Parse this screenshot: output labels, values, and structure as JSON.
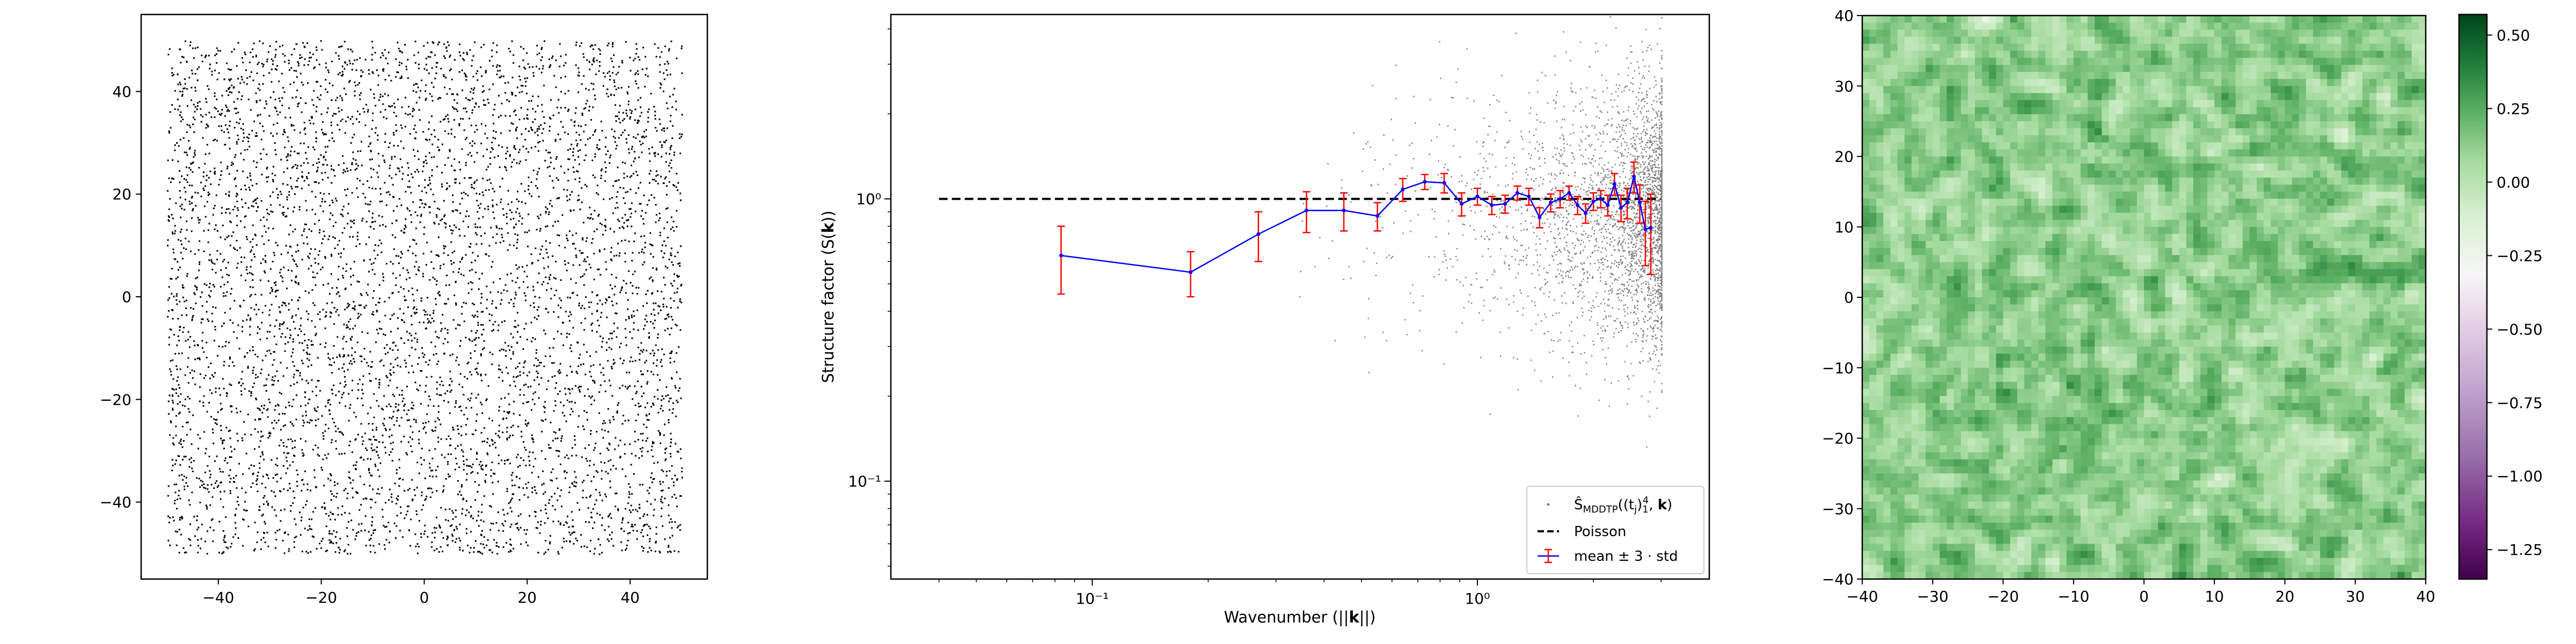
{
  "chart_data": [
    {
      "type": "scatter",
      "panel": "point-pattern",
      "xlim": [
        -55,
        55
      ],
      "ylim": [
        -55,
        55
      ],
      "points_extent": {
        "x": [
          -50,
          50
        ],
        "y": [
          -50,
          50
        ]
      },
      "approx_point_count": 6000,
      "xticks": [
        -40,
        -20,
        0,
        20,
        40
      ],
      "yticks": [
        -40,
        -20,
        0,
        20,
        40
      ],
      "xtick_labels": [
        "−40",
        "−20",
        "0",
        "20",
        "40"
      ],
      "ytick_labels": [
        "−40",
        "−20",
        "0",
        "20",
        "40"
      ],
      "marker_color": "#000000"
    },
    {
      "type": "scatter",
      "panel": "structure-factor",
      "xscale": "log",
      "yscale": "log",
      "xlim": [
        0.03,
        4
      ],
      "ylim": [
        0.045,
        4.5
      ],
      "xlabel": "Wavenumber (||k||)",
      "ylabel": "Structure factor (S(k))",
      "xticks": [
        0.1,
        1
      ],
      "xtick_labels": [
        "10⁻¹",
        "10⁰"
      ],
      "yticks": [
        0.1,
        1
      ],
      "ytick_labels": [
        "10⁻¹",
        "10⁰"
      ],
      "legend_position": "lower right",
      "series": [
        {
          "name": "Ŝ_MDDTP((t_j)_1^4, k)",
          "kind": "scatter",
          "color": "#808080",
          "approx_point_count": 3000
        },
        {
          "name": "Poisson",
          "kind": "line",
          "style": "dashed",
          "color": "#000000",
          "x": [
            0.04,
            3.0
          ],
          "y": [
            1.0,
            1.0
          ]
        },
        {
          "name": "mean ± 3 · std",
          "kind": "errorbar",
          "color": "#0000ff",
          "errcolor": "#ff0000",
          "x": [
            0.083,
            0.18,
            0.27,
            0.36,
            0.45,
            0.55,
            0.64,
            0.73,
            0.82,
            0.91,
            1.0,
            1.09,
            1.18,
            1.27,
            1.36,
            1.45,
            1.55,
            1.64,
            1.73,
            1.82,
            1.91,
            2.0,
            2.09,
            2.18,
            2.27,
            2.36,
            2.45,
            2.55,
            2.64,
            2.73,
            2.82
          ],
          "y": [
            0.63,
            0.55,
            0.75,
            0.91,
            0.91,
            0.87,
            1.08,
            1.15,
            1.14,
            0.96,
            1.02,
            0.95,
            0.96,
            1.05,
            1.02,
            0.86,
            0.97,
            1.0,
            1.05,
            0.95,
            0.89,
            0.98,
            1.0,
            0.95,
            1.13,
            0.93,
            0.97,
            1.2,
            0.97,
            0.78,
            0.79
          ],
          "yerr": [
            0.17,
            0.1,
            0.15,
            0.15,
            0.14,
            0.1,
            0.1,
            0.07,
            0.09,
            0.09,
            0.07,
            0.07,
            0.07,
            0.06,
            0.07,
            0.07,
            0.07,
            0.07,
            0.06,
            0.07,
            0.07,
            0.07,
            0.07,
            0.08,
            0.1,
            0.1,
            0.12,
            0.15,
            0.15,
            0.2,
            0.25
          ]
        }
      ],
      "legend_labels": {
        "scatter_prefix": "Ŝ",
        "scatter_sub": "MDDTP",
        "scatter_args": "((t",
        "scatter_j": "j",
        "scatter_range_sub": "1",
        "scatter_range_sup": "4",
        "scatter_k": "k",
        "poisson": "Poisson",
        "mean": "mean ± 3 · std"
      }
    },
    {
      "type": "heatmap",
      "panel": "field",
      "grid_size": [
        80,
        80
      ],
      "xlim": [
        -40,
        40
      ],
      "ylim": [
        -40,
        40
      ],
      "xticks": [
        -40,
        -30,
        -20,
        -10,
        0,
        10,
        20,
        30,
        40
      ],
      "yticks": [
        -40,
        -30,
        -20,
        -10,
        0,
        10,
        20,
        30,
        40
      ],
      "xtick_labels": [
        "−40",
        "−30",
        "−20",
        "−10",
        "0",
        "10",
        "20",
        "30",
        "40"
      ],
      "ytick_labels": [
        "−40",
        "−30",
        "−20",
        "−10",
        "0",
        "10",
        "20",
        "30",
        "40"
      ],
      "colormap": "PRGn",
      "value_range": [
        -1.35,
        0.57
      ],
      "colorbar_ticks": [
        0.5,
        0.25,
        0.0,
        -0.25,
        -0.5,
        -0.75,
        -1.0,
        -1.25
      ],
      "colorbar_tick_labels": [
        "0.50",
        "0.25",
        "0.00",
        "−0.25",
        "−0.50",
        "−0.75",
        "−1.00",
        "−1.25"
      ]
    }
  ]
}
